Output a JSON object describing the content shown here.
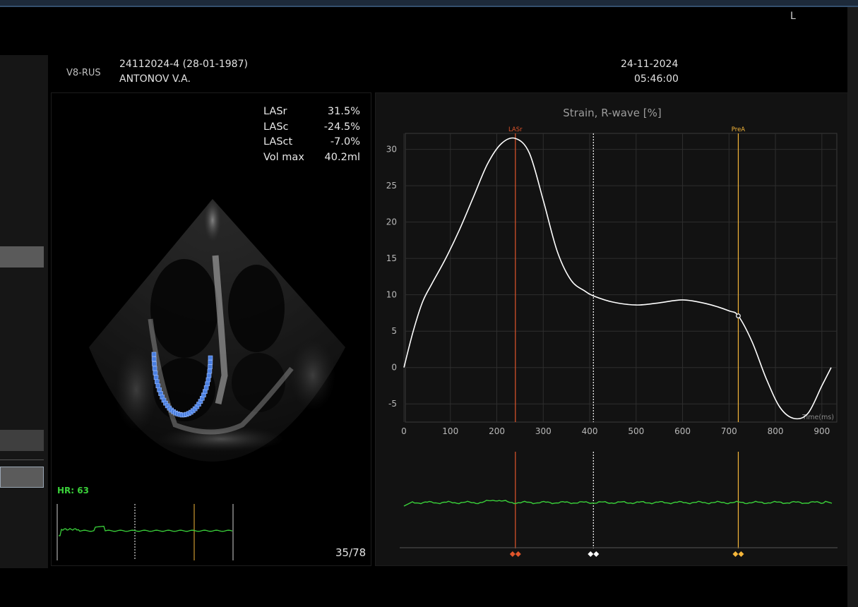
{
  "header": {
    "model": "V8-RUS",
    "patient_id": "24112024-4 (28-01-1987)",
    "patient_name": "ANTONOV V.A.",
    "date": "24-11-2024",
    "time": "05:46:00",
    "corner_mark": "L"
  },
  "measurements": [
    {
      "label": "LASr",
      "value": "31.5%"
    },
    {
      "label": "LASc",
      "value": "-24.5%"
    },
    {
      "label": "LASct",
      "value": "-7.0%"
    },
    {
      "label": "Vol max",
      "value": "40.2ml"
    }
  ],
  "ecg": {
    "hr_label": "HR: 63"
  },
  "cine": {
    "frame": "35/78"
  },
  "colors": {
    "lasr": "#e0552b",
    "prea": "#f5b63a",
    "ecg": "#3ad13a",
    "curve": "#ffffff",
    "tracking_points": "#4a7fe0"
  },
  "chart_data": {
    "type": "line",
    "title": "Strain, R-wave [%]",
    "xlabel": "Time(ms)",
    "ylabel": "",
    "xlim": [
      0,
      920
    ],
    "ylim": [
      -7.5,
      32
    ],
    "x_ticks": [
      0,
      100,
      200,
      300,
      400,
      500,
      600,
      700,
      800,
      900
    ],
    "y_ticks": [
      -5,
      0,
      5,
      10,
      15,
      20,
      25,
      30
    ],
    "grid": true,
    "series": [
      {
        "x": [
          0,
          20,
          40,
          60,
          90,
          120,
          150,
          180,
          210,
          240,
          270,
          300,
          330,
          360,
          390,
          410,
          450,
          500,
          550,
          600,
          650,
          700,
          720,
          750,
          780,
          810,
          840,
          870,
          900,
          920
        ],
        "y": [
          0,
          5,
          9,
          11.5,
          15,
          19,
          23.5,
          28,
          30.8,
          31.5,
          29.5,
          23,
          16,
          12,
          10.5,
          9.8,
          9,
          8.6,
          8.9,
          9.3,
          8.8,
          7.8,
          7.1,
          3.5,
          -1.5,
          -5.5,
          -7,
          -6.3,
          -2.5,
          0
        ]
      }
    ],
    "markers": [
      {
        "label": "LASr",
        "x": 240
      },
      {
        "label": "",
        "x": 408
      },
      {
        "label": "PreA",
        "x": 720
      }
    ]
  }
}
